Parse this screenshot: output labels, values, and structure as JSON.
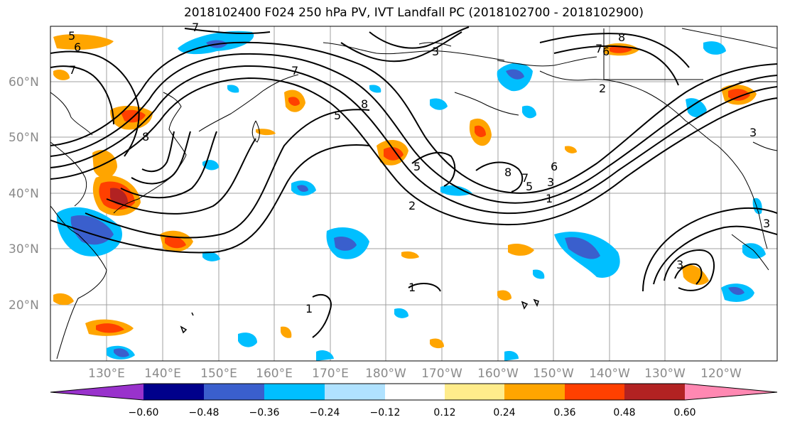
{
  "title": "2018102400 F024 250 hPa PV, IVT Landfall PC (2018102700 - 2018102900)",
  "lat_labels": [
    "60°N",
    "50°N",
    "40°N",
    "30°N",
    "20°N"
  ],
  "lon_labels": [
    "130°E",
    "140°E",
    "150°E",
    "160°E",
    "170°E",
    "180°W",
    "170°W",
    "160°W",
    "150°W",
    "140°W",
    "130°W",
    "120°W"
  ],
  "colorbar": {
    "colors": [
      "#9932cc",
      "#00008b",
      "#3a5fcd",
      "#00bfff",
      "#b0e2ff",
      "#ffffff",
      "#ffec8b",
      "#ffa500",
      "#ff4000",
      "#b22222",
      "#ff88b2"
    ],
    "tick_labels": [
      "−0.60",
      "−0.48",
      "−0.36",
      "−0.24",
      "−0.12",
      "0.12",
      "0.24",
      "0.36",
      "0.48",
      "0.60"
    ]
  },
  "contour_labels": [
    "5",
    "6",
    "7",
    "7",
    "8",
    "3",
    "7",
    "8",
    "7",
    "2",
    "6",
    "8",
    "5",
    "8",
    "2",
    "6",
    "7",
    "5",
    "5",
    "1",
    "3",
    "1",
    "1",
    "3",
    "3",
    "3"
  ],
  "colors": {
    "line": "#000000",
    "grid": "#a0a0a0",
    "label": "#8a8a8a"
  }
}
